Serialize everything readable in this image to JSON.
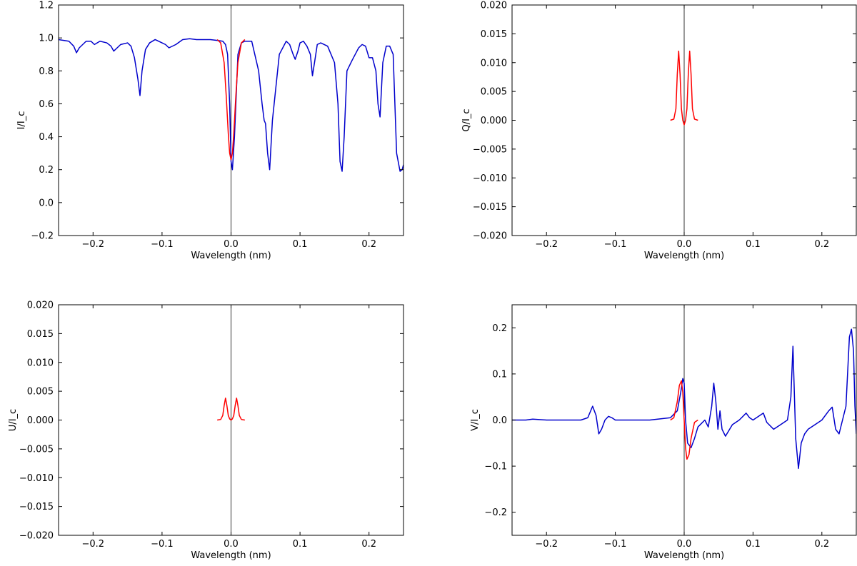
{
  "colors": {
    "model": "#ff0000",
    "observed": "#0000cc",
    "center_line": "#000000"
  },
  "chart_data": [
    {
      "type": "line",
      "xlabel": "Wavelength (nm)",
      "ylabel": "I/I_c",
      "xlim": [
        -0.25,
        0.25
      ],
      "ylim": [
        -0.2,
        1.2
      ],
      "xticks": [
        -0.2,
        -0.1,
        0.0,
        0.1,
        0.2
      ],
      "yticks": [
        -0.2,
        0.0,
        0.2,
        0.4,
        0.6,
        0.8,
        1.0,
        1.2
      ],
      "tick_decimals": 1,
      "vline": 0.0,
      "series": [
        {
          "color": "#0000cc",
          "x": [
            -0.25,
            -0.235,
            -0.228,
            -0.224,
            -0.22,
            -0.21,
            -0.203,
            -0.198,
            -0.19,
            -0.18,
            -0.174,
            -0.17,
            -0.16,
            -0.15,
            -0.145,
            -0.14,
            -0.135,
            -0.132,
            -0.129,
            -0.124,
            -0.118,
            -0.11,
            -0.1,
            -0.095,
            -0.09,
            -0.08,
            -0.07,
            -0.06,
            -0.05,
            -0.04,
            -0.03,
            -0.02,
            -0.012,
            -0.008,
            -0.005,
            -0.002,
            0.0,
            0.002,
            0.005,
            0.01,
            0.015,
            0.02,
            0.03,
            0.04,
            0.045,
            0.048,
            0.05,
            0.053,
            0.056,
            0.06,
            0.07,
            0.08,
            0.085,
            0.09,
            0.093,
            0.097,
            0.1,
            0.105,
            0.11,
            0.115,
            0.118,
            0.121,
            0.125,
            0.13,
            0.14,
            0.15,
            0.155,
            0.158,
            0.161,
            0.164,
            0.168,
            0.175,
            0.18,
            0.185,
            0.19,
            0.195,
            0.2,
            0.205,
            0.21,
            0.213,
            0.216,
            0.22,
            0.225,
            0.23,
            0.235,
            0.24,
            0.245,
            0.248,
            0.25
          ],
          "y": [
            0.99,
            0.98,
            0.95,
            0.91,
            0.94,
            0.98,
            0.98,
            0.96,
            0.98,
            0.97,
            0.95,
            0.92,
            0.96,
            0.97,
            0.95,
            0.88,
            0.75,
            0.65,
            0.8,
            0.93,
            0.97,
            0.99,
            0.97,
            0.96,
            0.94,
            0.96,
            0.99,
            0.995,
            0.99,
            0.99,
            0.99,
            0.985,
            0.98,
            0.96,
            0.9,
            0.6,
            0.25,
            0.2,
            0.4,
            0.9,
            0.97,
            0.98,
            0.98,
            0.8,
            0.6,
            0.5,
            0.48,
            0.3,
            0.2,
            0.5,
            0.9,
            0.98,
            0.96,
            0.9,
            0.87,
            0.92,
            0.97,
            0.98,
            0.95,
            0.9,
            0.77,
            0.85,
            0.96,
            0.97,
            0.95,
            0.85,
            0.6,
            0.25,
            0.19,
            0.4,
            0.8,
            0.86,
            0.9,
            0.94,
            0.96,
            0.95,
            0.88,
            0.88,
            0.8,
            0.6,
            0.52,
            0.85,
            0.95,
            0.95,
            0.9,
            0.3,
            0.19,
            0.2,
            0.23
          ]
        },
        {
          "color": "#ff0000",
          "x": [
            -0.02,
            -0.015,
            -0.01,
            -0.007,
            -0.004,
            -0.002,
            0.0,
            0.002,
            0.004,
            0.007,
            0.01,
            0.015,
            0.02
          ],
          "y": [
            0.99,
            0.97,
            0.85,
            0.65,
            0.42,
            0.3,
            0.26,
            0.3,
            0.42,
            0.65,
            0.85,
            0.97,
            0.99
          ]
        }
      ]
    },
    {
      "type": "line",
      "xlabel": "Wavelength (nm)",
      "ylabel": "Q/I_c",
      "xlim": [
        -0.25,
        0.25
      ],
      "ylim": [
        -0.02,
        0.02
      ],
      "xticks": [
        -0.2,
        -0.1,
        0.0,
        0.1,
        0.2
      ],
      "yticks": [
        -0.02,
        -0.015,
        -0.01,
        -0.005,
        0.0,
        0.005,
        0.01,
        0.015,
        0.02
      ],
      "tick_decimals": 3,
      "vline": 0.0,
      "series": [
        {
          "color": "#ff0000",
          "x": [
            -0.02,
            -0.015,
            -0.012,
            -0.01,
            -0.008,
            -0.006,
            -0.004,
            -0.002,
            0.0,
            0.002,
            0.004,
            0.006,
            0.008,
            0.01,
            0.012,
            0.015,
            0.02
          ],
          "y": [
            0.0,
            0.0002,
            0.002,
            0.008,
            0.012,
            0.008,
            0.002,
            0.0,
            -0.0008,
            0.0,
            0.002,
            0.008,
            0.012,
            0.008,
            0.002,
            0.0002,
            0.0
          ]
        }
      ]
    },
    {
      "type": "line",
      "xlabel": "Wavelength (nm)",
      "ylabel": "U/I_c",
      "xlim": [
        -0.25,
        0.25
      ],
      "ylim": [
        -0.02,
        0.02
      ],
      "xticks": [
        -0.2,
        -0.1,
        0.0,
        0.1,
        0.2
      ],
      "yticks": [
        -0.02,
        -0.015,
        -0.01,
        -0.005,
        0.0,
        0.005,
        0.01,
        0.015,
        0.02
      ],
      "tick_decimals": 3,
      "vline": 0.0,
      "series": [
        {
          "color": "#ff0000",
          "x": [
            -0.02,
            -0.015,
            -0.012,
            -0.01,
            -0.008,
            -0.006,
            -0.004,
            -0.002,
            0.0,
            0.002,
            0.004,
            0.006,
            0.008,
            0.01,
            0.012,
            0.015,
            0.02
          ],
          "y": [
            0.0,
            0.0001,
            0.0008,
            0.0025,
            0.0038,
            0.0025,
            0.0008,
            0.0002,
            0.0,
            0.0002,
            0.0008,
            0.0025,
            0.0038,
            0.0025,
            0.0008,
            0.0001,
            0.0
          ]
        }
      ]
    },
    {
      "type": "line",
      "xlabel": "Wavelength (nm)",
      "ylabel": "V/I_c",
      "xlim": [
        -0.25,
        0.25
      ],
      "ylim": [
        -0.25,
        0.25
      ],
      "xticks": [
        -0.2,
        -0.1,
        0.0,
        0.1,
        0.2
      ],
      "yticks": [
        -0.2,
        -0.1,
        0.0,
        0.1,
        0.2
      ],
      "tick_decimals": 1,
      "vline": 0.0,
      "series": [
        {
          "color": "#0000cc",
          "x": [
            -0.25,
            -0.23,
            -0.22,
            -0.2,
            -0.15,
            -0.14,
            -0.133,
            -0.128,
            -0.124,
            -0.12,
            -0.115,
            -0.11,
            -0.105,
            -0.1,
            -0.08,
            -0.05,
            -0.02,
            -0.01,
            -0.005,
            -0.002,
            0.0,
            0.002,
            0.005,
            0.01,
            0.015,
            0.02,
            0.03,
            0.035,
            0.04,
            0.043,
            0.046,
            0.049,
            0.052,
            0.055,
            0.06,
            0.07,
            0.08,
            0.09,
            0.095,
            0.1,
            0.11,
            0.115,
            0.12,
            0.13,
            0.14,
            0.15,
            0.155,
            0.158,
            0.162,
            0.166,
            0.17,
            0.175,
            0.18,
            0.19,
            0.2,
            0.21,
            0.215,
            0.22,
            0.225,
            0.23,
            0.235,
            0.24,
            0.243,
            0.246,
            0.248,
            0.25
          ],
          "y": [
            0.0,
            0.0,
            0.002,
            0.0,
            0.0,
            0.005,
            0.03,
            0.01,
            -0.03,
            -0.02,
            0.0,
            0.008,
            0.005,
            0.0,
            0.0,
            0.0,
            0.005,
            0.02,
            0.06,
            0.09,
            0.08,
            0.0,
            -0.05,
            -0.06,
            -0.04,
            -0.015,
            0.0,
            -0.015,
            0.03,
            0.08,
            0.04,
            -0.02,
            0.02,
            -0.02,
            -0.035,
            -0.01,
            0.0,
            0.015,
            0.005,
            0.0,
            0.01,
            0.015,
            -0.005,
            -0.02,
            -0.01,
            0.0,
            0.05,
            0.16,
            -0.04,
            -0.105,
            -0.05,
            -0.03,
            -0.02,
            -0.01,
            0.0,
            0.02,
            0.028,
            -0.02,
            -0.03,
            0.0,
            0.03,
            0.18,
            0.197,
            0.15,
            0.03,
            -0.03
          ]
        },
        {
          "color": "#ff0000",
          "x": [
            -0.02,
            -0.015,
            -0.01,
            -0.007,
            -0.004,
            -0.002,
            0.0,
            0.002,
            0.004,
            0.007,
            0.01,
            0.015,
            0.02
          ],
          "y": [
            0.0,
            0.005,
            0.04,
            0.075,
            0.085,
            0.06,
            0.0,
            -0.06,
            -0.085,
            -0.075,
            -0.04,
            -0.005,
            0.0
          ]
        }
      ]
    }
  ]
}
